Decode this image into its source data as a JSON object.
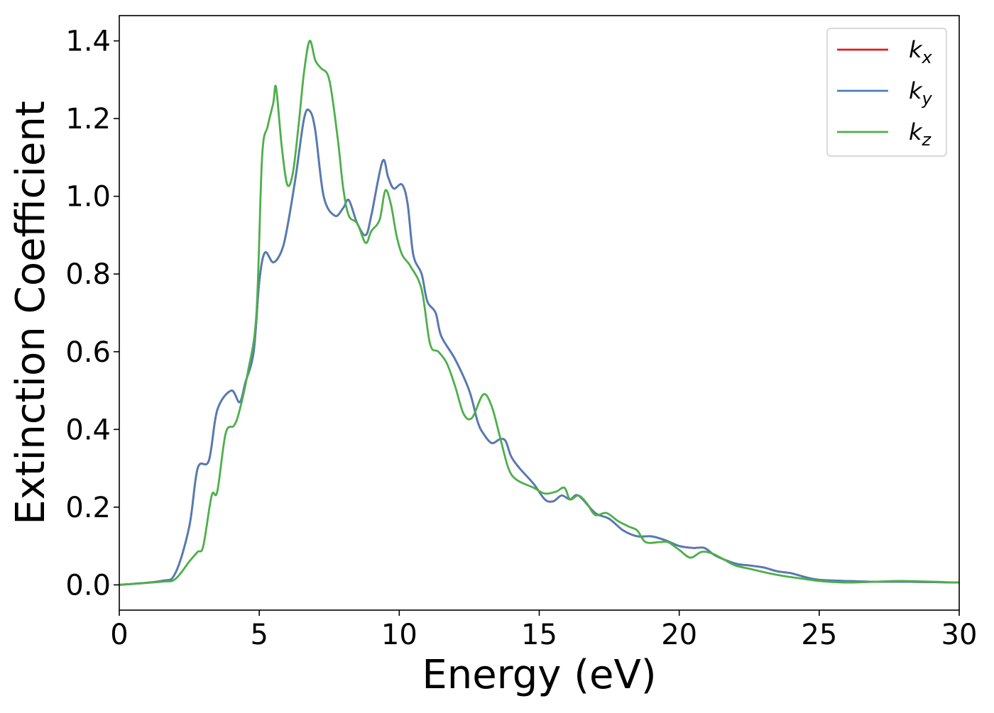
{
  "chart_data": {
    "type": "line",
    "title": "",
    "xlabel": "Energy (eV)",
    "ylabel": "Extinction Coefficient",
    "xlim": [
      0,
      30
    ],
    "ylim": [
      -0.065,
      1.465
    ],
    "xticks": [
      0,
      5,
      10,
      15,
      20,
      25,
      30
    ],
    "xtick_labels": [
      "0",
      "5",
      "10",
      "15",
      "20",
      "25",
      "30"
    ],
    "yticks": [
      0.0,
      0.2,
      0.4,
      0.6,
      0.8,
      1.0,
      1.2,
      1.4
    ],
    "ytick_labels": [
      "0.0",
      "0.2",
      "0.4",
      "0.6",
      "0.8",
      "1.0",
      "1.2",
      "1.4"
    ],
    "grid": false,
    "legend_position": "top-right",
    "series": [
      {
        "name": "k_x",
        "base": "k",
        "sub": "x",
        "color": "#e41a1c",
        "points": [
          [
            0,
            0.0
          ],
          [
            1.5,
            0.01
          ],
          [
            2.0,
            0.03
          ],
          [
            2.5,
            0.15
          ],
          [
            2.8,
            0.3
          ],
          [
            3.2,
            0.32
          ],
          [
            3.5,
            0.45
          ],
          [
            4.0,
            0.5
          ],
          [
            4.3,
            0.47
          ],
          [
            4.5,
            0.52
          ],
          [
            4.8,
            0.6
          ],
          [
            5.0,
            0.78
          ],
          [
            5.2,
            0.855
          ],
          [
            5.5,
            0.83
          ],
          [
            5.8,
            0.86
          ],
          [
            6.0,
            0.92
          ],
          [
            6.3,
            1.05
          ],
          [
            6.6,
            1.2
          ],
          [
            6.8,
            1.22
          ],
          [
            7.0,
            1.17
          ],
          [
            7.3,
            1.0
          ],
          [
            7.7,
            0.95
          ],
          [
            8.0,
            0.97
          ],
          [
            8.2,
            0.99
          ],
          [
            8.5,
            0.93
          ],
          [
            8.8,
            0.9
          ],
          [
            9.0,
            0.95
          ],
          [
            9.4,
            1.09
          ],
          [
            9.6,
            1.05
          ],
          [
            9.8,
            1.02
          ],
          [
            10.1,
            1.03
          ],
          [
            10.3,
            0.98
          ],
          [
            10.5,
            0.85
          ],
          [
            10.8,
            0.8
          ],
          [
            11.0,
            0.73
          ],
          [
            11.3,
            0.7
          ],
          [
            11.5,
            0.64
          ],
          [
            12.0,
            0.58
          ],
          [
            12.5,
            0.5
          ],
          [
            12.8,
            0.42
          ],
          [
            13.0,
            0.39
          ],
          [
            13.3,
            0.365
          ],
          [
            13.6,
            0.375
          ],
          [
            13.8,
            0.37
          ],
          [
            14.0,
            0.33
          ],
          [
            14.3,
            0.3
          ],
          [
            14.8,
            0.26
          ],
          [
            15.2,
            0.22
          ],
          [
            15.5,
            0.215
          ],
          [
            15.8,
            0.23
          ],
          [
            16.1,
            0.22
          ],
          [
            16.4,
            0.23
          ],
          [
            17.0,
            0.185
          ],
          [
            17.5,
            0.17
          ],
          [
            18.0,
            0.14
          ],
          [
            18.5,
            0.125
          ],
          [
            19.0,
            0.125
          ],
          [
            19.5,
            0.115
          ],
          [
            20.0,
            0.1
          ],
          [
            20.5,
            0.095
          ],
          [
            20.9,
            0.095
          ],
          [
            21.3,
            0.075
          ],
          [
            22.0,
            0.055
          ],
          [
            22.5,
            0.05
          ],
          [
            23.0,
            0.045
          ],
          [
            23.5,
            0.035
          ],
          [
            24.0,
            0.03
          ],
          [
            24.5,
            0.02
          ],
          [
            25.0,
            0.013
          ],
          [
            26.0,
            0.01
          ],
          [
            27.0,
            0.008
          ],
          [
            28.0,
            0.008
          ],
          [
            30.0,
            0.006
          ]
        ]
      },
      {
        "name": "k_y",
        "base": "k",
        "sub": "y",
        "color": "#4f7db7",
        "points": [
          [
            0,
            0.0
          ],
          [
            1.5,
            0.01
          ],
          [
            2.0,
            0.03
          ],
          [
            2.5,
            0.15
          ],
          [
            2.8,
            0.3
          ],
          [
            3.2,
            0.32
          ],
          [
            3.5,
            0.45
          ],
          [
            4.0,
            0.5
          ],
          [
            4.3,
            0.47
          ],
          [
            4.5,
            0.52
          ],
          [
            4.8,
            0.6
          ],
          [
            5.0,
            0.78
          ],
          [
            5.2,
            0.855
          ],
          [
            5.5,
            0.83
          ],
          [
            5.8,
            0.86
          ],
          [
            6.0,
            0.92
          ],
          [
            6.3,
            1.05
          ],
          [
            6.6,
            1.2
          ],
          [
            6.8,
            1.22
          ],
          [
            7.0,
            1.17
          ],
          [
            7.3,
            1.0
          ],
          [
            7.7,
            0.95
          ],
          [
            8.0,
            0.97
          ],
          [
            8.2,
            0.99
          ],
          [
            8.5,
            0.93
          ],
          [
            8.8,
            0.9
          ],
          [
            9.0,
            0.95
          ],
          [
            9.4,
            1.09
          ],
          [
            9.6,
            1.05
          ],
          [
            9.8,
            1.02
          ],
          [
            10.1,
            1.03
          ],
          [
            10.3,
            0.98
          ],
          [
            10.5,
            0.85
          ],
          [
            10.8,
            0.8
          ],
          [
            11.0,
            0.73
          ],
          [
            11.3,
            0.7
          ],
          [
            11.5,
            0.64
          ],
          [
            12.0,
            0.58
          ],
          [
            12.5,
            0.5
          ],
          [
            12.8,
            0.42
          ],
          [
            13.0,
            0.39
          ],
          [
            13.3,
            0.365
          ],
          [
            13.6,
            0.375
          ],
          [
            13.8,
            0.37
          ],
          [
            14.0,
            0.33
          ],
          [
            14.3,
            0.3
          ],
          [
            14.8,
            0.26
          ],
          [
            15.2,
            0.22
          ],
          [
            15.5,
            0.215
          ],
          [
            15.8,
            0.23
          ],
          [
            16.1,
            0.22
          ],
          [
            16.4,
            0.23
          ],
          [
            17.0,
            0.185
          ],
          [
            17.5,
            0.17
          ],
          [
            18.0,
            0.14
          ],
          [
            18.5,
            0.125
          ],
          [
            19.0,
            0.125
          ],
          [
            19.5,
            0.115
          ],
          [
            20.0,
            0.1
          ],
          [
            20.5,
            0.095
          ],
          [
            20.9,
            0.095
          ],
          [
            21.3,
            0.075
          ],
          [
            22.0,
            0.055
          ],
          [
            22.5,
            0.05
          ],
          [
            23.0,
            0.045
          ],
          [
            23.5,
            0.035
          ],
          [
            24.0,
            0.03
          ],
          [
            24.5,
            0.02
          ],
          [
            25.0,
            0.013
          ],
          [
            26.0,
            0.01
          ],
          [
            27.0,
            0.008
          ],
          [
            28.0,
            0.008
          ],
          [
            30.0,
            0.006
          ]
        ]
      },
      {
        "name": "k_z",
        "base": "k",
        "sub": "z",
        "color": "#4daf4a",
        "points": [
          [
            0,
            0.0
          ],
          [
            1.5,
            0.008
          ],
          [
            2.0,
            0.015
          ],
          [
            2.5,
            0.06
          ],
          [
            2.8,
            0.085
          ],
          [
            3.0,
            0.1
          ],
          [
            3.3,
            0.23
          ],
          [
            3.5,
            0.24
          ],
          [
            3.8,
            0.39
          ],
          [
            4.1,
            0.41
          ],
          [
            4.3,
            0.45
          ],
          [
            4.6,
            0.55
          ],
          [
            4.9,
            0.7
          ],
          [
            5.1,
            1.1
          ],
          [
            5.3,
            1.18
          ],
          [
            5.5,
            1.24
          ],
          [
            5.6,
            1.28
          ],
          [
            5.8,
            1.13
          ],
          [
            6.0,
            1.03
          ],
          [
            6.2,
            1.06
          ],
          [
            6.4,
            1.18
          ],
          [
            6.6,
            1.32
          ],
          [
            6.8,
            1.4
          ],
          [
            7.0,
            1.35
          ],
          [
            7.2,
            1.33
          ],
          [
            7.5,
            1.3
          ],
          [
            7.8,
            1.15
          ],
          [
            8.0,
            1.02
          ],
          [
            8.2,
            0.95
          ],
          [
            8.5,
            0.93
          ],
          [
            8.8,
            0.88
          ],
          [
            9.0,
            0.91
          ],
          [
            9.3,
            0.94
          ],
          [
            9.5,
            1.015
          ],
          [
            9.7,
            0.98
          ],
          [
            9.9,
            0.9
          ],
          [
            10.1,
            0.85
          ],
          [
            10.4,
            0.82
          ],
          [
            10.8,
            0.76
          ],
          [
            11.1,
            0.62
          ],
          [
            11.4,
            0.6
          ],
          [
            11.7,
            0.57
          ],
          [
            12.0,
            0.51
          ],
          [
            12.3,
            0.44
          ],
          [
            12.6,
            0.43
          ],
          [
            13.0,
            0.49
          ],
          [
            13.3,
            0.46
          ],
          [
            13.6,
            0.38
          ],
          [
            13.9,
            0.3
          ],
          [
            14.2,
            0.27
          ],
          [
            14.8,
            0.25
          ],
          [
            15.2,
            0.235
          ],
          [
            15.6,
            0.24
          ],
          [
            15.9,
            0.25
          ],
          [
            16.1,
            0.22
          ],
          [
            16.4,
            0.23
          ],
          [
            16.7,
            0.21
          ],
          [
            17.0,
            0.18
          ],
          [
            17.4,
            0.185
          ],
          [
            17.8,
            0.165
          ],
          [
            18.2,
            0.15
          ],
          [
            18.5,
            0.14
          ],
          [
            18.8,
            0.11
          ],
          [
            19.3,
            0.11
          ],
          [
            19.6,
            0.11
          ],
          [
            20.0,
            0.09
          ],
          [
            20.4,
            0.07
          ],
          [
            20.8,
            0.085
          ],
          [
            21.2,
            0.08
          ],
          [
            21.6,
            0.065
          ],
          [
            22.0,
            0.05
          ],
          [
            22.6,
            0.04
          ],
          [
            23.2,
            0.03
          ],
          [
            23.8,
            0.022
          ],
          [
            24.5,
            0.015
          ],
          [
            25.0,
            0.01
          ],
          [
            26.0,
            0.006
          ],
          [
            27.0,
            0.008
          ],
          [
            28.0,
            0.01
          ],
          [
            30.0,
            0.006
          ]
        ]
      }
    ]
  }
}
